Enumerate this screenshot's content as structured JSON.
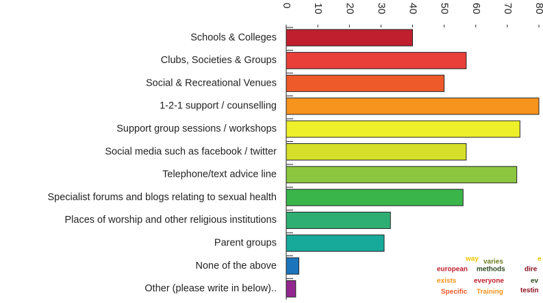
{
  "chart_data": {
    "type": "bar",
    "orientation": "horizontal",
    "categories": [
      "Schools & Colleges",
      "Clubs, Societies & Groups",
      "Social & Recreational Venues",
      "1-2-1 support / counselling",
      "Support group sessions / workshops",
      "Social media such as facebook / twitter",
      "Telephone/text advice line",
      "Specialist forums and blogs relating to sexual health",
      "Places of worship and other religious institutions",
      "Parent groups",
      "None of the above",
      "Other (please write in below).."
    ],
    "values": [
      40,
      57,
      50,
      80,
      74,
      57,
      73,
      56,
      33,
      31,
      4,
      3
    ],
    "colors": [
      "#c0202e",
      "#e9403a",
      "#ee5a2a",
      "#f7941d",
      "#eef02a",
      "#d6e02a",
      "#8cc63e",
      "#3ab54a",
      "#2fae74",
      "#17a99a",
      "#1c75bc",
      "#92278f"
    ],
    "xlim": [
      0,
      80
    ],
    "xticks": [
      0,
      10,
      20,
      30,
      40,
      50,
      60,
      70,
      80
    ],
    "annotations": [
      {
        "text": "way",
        "color": "#f2c200"
      },
      {
        "text": "varies",
        "color": "#6b7d1c"
      },
      {
        "text": "e",
        "color": "#f2c200"
      },
      {
        "text": "european",
        "color": "#c0202e"
      },
      {
        "text": "methods",
        "color": "#2d4a1e"
      },
      {
        "text": "dire",
        "color": "#8a1020"
      },
      {
        "text": "exists",
        "color": "#f7941d"
      },
      {
        "text": "everyone",
        "color": "#c0202e"
      },
      {
        "text": "ev",
        "color": "#2d4a1e"
      },
      {
        "text": "Specific",
        "color": "#ee5a2a"
      },
      {
        "text": "Training",
        "color": "#f7941d"
      },
      {
        "text": "testin",
        "color": "#8a1020"
      }
    ]
  }
}
